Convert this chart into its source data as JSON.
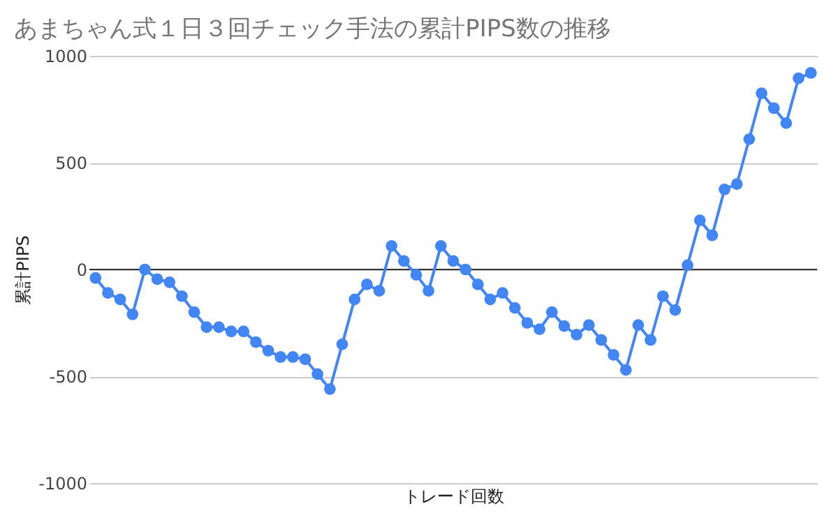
{
  "chart_data": {
    "type": "line",
    "title": "あまちゃん式１日３回チェック手法の累計PIPS数の推移",
    "xlabel": "トレード回数",
    "ylabel": "累計PIPS",
    "categories": [
      null,
      null,
      null,
      null,
      null,
      null,
      null,
      null,
      null,
      null,
      null,
      null,
      null,
      null,
      null,
      null,
      null,
      null,
      null,
      null,
      null,
      null,
      null,
      null,
      null,
      null,
      null,
      null,
      null,
      null,
      null,
      null,
      null,
      null,
      null,
      null,
      null,
      null,
      null,
      null,
      null,
      null,
      null,
      null,
      null,
      null,
      null,
      null,
      null,
      null,
      null,
      null,
      null,
      null,
      null,
      null,
      null,
      null,
      null
    ],
    "series": [
      {
        "color": "#4285f4",
        "values": [
          -40,
          -110,
          -140,
          -210,
          0,
          -45,
          -60,
          -125,
          -200,
          -270,
          -270,
          -290,
          -290,
          -340,
          -380,
          -410,
          -410,
          -420,
          -490,
          -560,
          -350,
          -140,
          -70,
          -100,
          110,
          40,
          -25,
          -100,
          110,
          40,
          0,
          -70,
          -140,
          -110,
          -180,
          -250,
          -280,
          -200,
          -265,
          -305,
          -260,
          -330,
          -400,
          -470,
          -260,
          -330,
          -125,
          -190,
          20,
          230,
          160,
          375,
          400,
          610,
          825,
          755,
          685,
          895,
          920
        ]
      }
    ],
    "ylim": [
      -1000,
      1000
    ],
    "yticks": [
      -1000,
      -500,
      0,
      500,
      1000
    ],
    "grid": "y",
    "marker": "circle",
    "line_style": "solid",
    "ref_lines": [
      {
        "axis": "y",
        "value": 0,
        "color": "#333333"
      }
    ]
  }
}
